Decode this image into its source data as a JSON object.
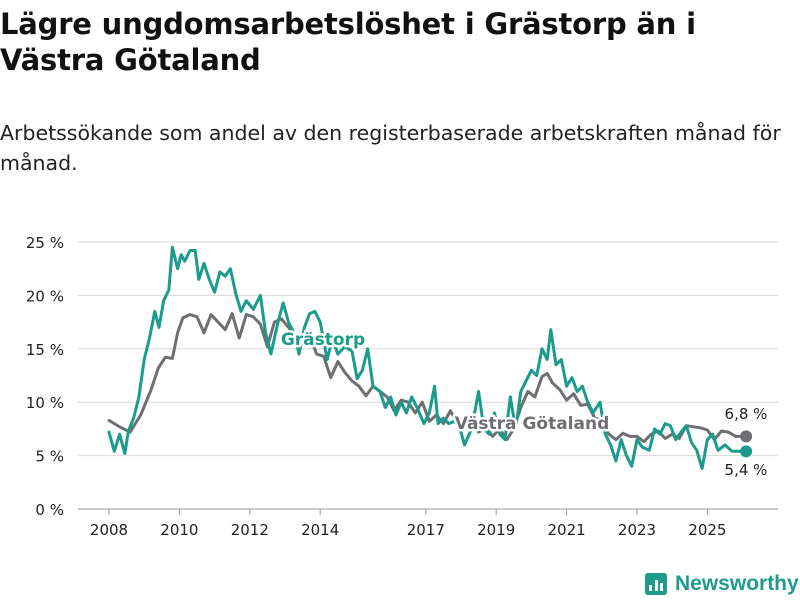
{
  "title": "Lägre ungdomsarbetslöshet i Grästorp än i Västra Götaland",
  "subtitle": "Arbetssökande som andel av den registerbaserade arbetskraften månad för månad.",
  "brand": "Newsworthy",
  "colors": {
    "grastorp": "#1a9b8c",
    "vg": "#6e6e73",
    "grid": "#d9d9d9",
    "text": "#222222"
  },
  "chart_data": {
    "type": "line",
    "title": "Lägre ungdomsarbetslöshet i Grästorp än i Västra Götaland",
    "xlabel": "",
    "ylabel": "",
    "ylim": [
      0,
      25
    ],
    "xlim": [
      2007.95,
      2026.3
    ],
    "y_ticks": [
      0,
      5,
      10,
      15,
      20,
      25
    ],
    "y_tick_labels": [
      "0 %",
      "5 %",
      "10 %",
      "15 %",
      "20 %",
      "25 %"
    ],
    "x_ticks": [
      2008,
      2010,
      2012,
      2014,
      2017,
      2019,
      2021,
      2023,
      2025
    ],
    "x_tick_labels": [
      "2008",
      "2010",
      "2012",
      "2014",
      "2017",
      "2019",
      "2021",
      "2023",
      "2025"
    ],
    "series": [
      {
        "name": "Västra Götaland",
        "label": "Västra Götaland",
        "end_label": "6,8 %",
        "points": [
          [
            2008.0,
            8.3
          ],
          [
            2008.3,
            7.7
          ],
          [
            2008.6,
            7.2
          ],
          [
            2008.9,
            8.8
          ],
          [
            2009.2,
            11.2
          ],
          [
            2009.4,
            13.2
          ],
          [
            2009.6,
            14.2
          ],
          [
            2009.8,
            14.1
          ],
          [
            2009.95,
            16.5
          ],
          [
            2010.1,
            17.9
          ],
          [
            2010.3,
            18.2
          ],
          [
            2010.5,
            18.0
          ],
          [
            2010.7,
            16.5
          ],
          [
            2010.9,
            18.2
          ],
          [
            2011.1,
            17.5
          ],
          [
            2011.3,
            16.8
          ],
          [
            2011.5,
            18.3
          ],
          [
            2011.7,
            16.0
          ],
          [
            2011.9,
            18.2
          ],
          [
            2012.1,
            18.0
          ],
          [
            2012.3,
            17.3
          ],
          [
            2012.5,
            15.2
          ],
          [
            2012.7,
            17.5
          ],
          [
            2012.9,
            17.8
          ],
          [
            2013.1,
            17.0
          ],
          [
            2013.3,
            16.2
          ],
          [
            2013.5,
            15.5
          ],
          [
            2013.7,
            16.2
          ],
          [
            2013.9,
            14.5
          ],
          [
            2014.1,
            14.3
          ],
          [
            2014.3,
            12.3
          ],
          [
            2014.5,
            13.8
          ],
          [
            2014.7,
            12.8
          ],
          [
            2014.9,
            12.0
          ],
          [
            2015.1,
            11.5
          ],
          [
            2015.3,
            10.6
          ],
          [
            2015.5,
            11.5
          ],
          [
            2015.7,
            11.0
          ],
          [
            2015.9,
            10.5
          ],
          [
            2016.1,
            9.2
          ],
          [
            2016.3,
            10.2
          ],
          [
            2016.5,
            10.0
          ],
          [
            2016.7,
            9.0
          ],
          [
            2016.9,
            10.0
          ],
          [
            2017.1,
            8.2
          ],
          [
            2017.3,
            8.8
          ],
          [
            2017.5,
            8.0
          ],
          [
            2017.7,
            9.2
          ],
          [
            2017.9,
            8.0
          ],
          [
            2018.1,
            7.5
          ],
          [
            2018.3,
            8.0
          ],
          [
            2018.5,
            7.2
          ],
          [
            2018.7,
            7.6
          ],
          [
            2018.9,
            6.8
          ],
          [
            2019.1,
            7.5
          ],
          [
            2019.3,
            6.5
          ],
          [
            2019.5,
            7.5
          ],
          [
            2019.7,
            9.5
          ],
          [
            2019.9,
            11.0
          ],
          [
            2020.1,
            10.5
          ],
          [
            2020.3,
            12.4
          ],
          [
            2020.45,
            12.7
          ],
          [
            2020.6,
            11.8
          ],
          [
            2020.8,
            11.2
          ],
          [
            2021.0,
            10.2
          ],
          [
            2021.2,
            10.8
          ],
          [
            2021.4,
            9.7
          ],
          [
            2021.6,
            9.8
          ],
          [
            2021.8,
            8.5
          ],
          [
            2022.0,
            8.3
          ],
          [
            2022.2,
            7.0
          ],
          [
            2022.4,
            6.5
          ],
          [
            2022.6,
            7.1
          ],
          [
            2022.8,
            6.8
          ],
          [
            2023.0,
            6.8
          ],
          [
            2023.2,
            6.3
          ],
          [
            2023.4,
            7.0
          ],
          [
            2023.6,
            7.3
          ],
          [
            2023.8,
            6.6
          ],
          [
            2024.0,
            7.0
          ],
          [
            2024.2,
            6.6
          ],
          [
            2024.4,
            7.8
          ],
          [
            2024.6,
            7.7
          ],
          [
            2024.8,
            7.6
          ],
          [
            2025.0,
            7.4
          ],
          [
            2025.2,
            6.5
          ],
          [
            2025.4,
            7.3
          ],
          [
            2025.6,
            7.2
          ],
          [
            2025.8,
            6.8
          ],
          [
            2026.1,
            6.8
          ]
        ]
      },
      {
        "name": "Grästorp",
        "label": "Grästorp",
        "end_label": "5,4 %",
        "points": [
          [
            2008.0,
            7.2
          ],
          [
            2008.15,
            5.4
          ],
          [
            2008.3,
            7.0
          ],
          [
            2008.45,
            5.2
          ],
          [
            2008.55,
            7.3
          ],
          [
            2008.7,
            8.5
          ],
          [
            2008.85,
            10.5
          ],
          [
            2009.0,
            14.0
          ],
          [
            2009.15,
            16.0
          ],
          [
            2009.3,
            18.5
          ],
          [
            2009.42,
            17.0
          ],
          [
            2009.55,
            19.5
          ],
          [
            2009.7,
            20.5
          ],
          [
            2009.8,
            24.5
          ],
          [
            2009.95,
            22.5
          ],
          [
            2010.05,
            23.8
          ],
          [
            2010.15,
            23.2
          ],
          [
            2010.3,
            24.2
          ],
          [
            2010.45,
            24.2
          ],
          [
            2010.55,
            21.5
          ],
          [
            2010.7,
            23.0
          ],
          [
            2010.85,
            21.5
          ],
          [
            2011.0,
            20.3
          ],
          [
            2011.15,
            22.2
          ],
          [
            2011.3,
            21.8
          ],
          [
            2011.45,
            22.5
          ],
          [
            2011.6,
            20.2
          ],
          [
            2011.75,
            18.5
          ],
          [
            2011.9,
            19.5
          ],
          [
            2012.1,
            18.7
          ],
          [
            2012.3,
            20.0
          ],
          [
            2012.45,
            16.5
          ],
          [
            2012.6,
            14.5
          ],
          [
            2012.8,
            17.5
          ],
          [
            2012.95,
            19.3
          ],
          [
            2013.1,
            17.5
          ],
          [
            2013.25,
            16.5
          ],
          [
            2013.4,
            14.5
          ],
          [
            2013.55,
            17.0
          ],
          [
            2013.7,
            18.3
          ],
          [
            2013.85,
            18.5
          ],
          [
            2014.0,
            17.5
          ],
          [
            2014.2,
            14.0
          ],
          [
            2014.35,
            16.0
          ],
          [
            2014.5,
            14.5
          ],
          [
            2014.7,
            15.2
          ],
          [
            2014.9,
            14.8
          ],
          [
            2015.05,
            12.2
          ],
          [
            2015.2,
            13.0
          ],
          [
            2015.35,
            15.0
          ],
          [
            2015.5,
            11.5
          ],
          [
            2015.7,
            11.0
          ],
          [
            2015.85,
            9.5
          ],
          [
            2016.0,
            10.5
          ],
          [
            2016.15,
            8.8
          ],
          [
            2016.3,
            10.0
          ],
          [
            2016.45,
            9.0
          ],
          [
            2016.6,
            10.5
          ],
          [
            2016.75,
            9.5
          ],
          [
            2016.95,
            8.0
          ],
          [
            2017.1,
            9.0
          ],
          [
            2017.25,
            11.5
          ],
          [
            2017.35,
            8.0
          ],
          [
            2017.5,
            8.5
          ],
          [
            2017.65,
            8.0
          ],
          [
            2017.8,
            8.2
          ],
          [
            2017.95,
            7.8
          ],
          [
            2018.1,
            6.0
          ],
          [
            2018.3,
            7.5
          ],
          [
            2018.5,
            11.0
          ],
          [
            2018.65,
            7.5
          ],
          [
            2018.8,
            7.0
          ],
          [
            2018.95,
            9.0
          ],
          [
            2019.1,
            7.0
          ],
          [
            2019.25,
            6.5
          ],
          [
            2019.4,
            10.5
          ],
          [
            2019.55,
            7.5
          ],
          [
            2019.7,
            11.0
          ],
          [
            2019.85,
            12.0
          ],
          [
            2020.0,
            13.0
          ],
          [
            2020.15,
            12.5
          ],
          [
            2020.3,
            15.0
          ],
          [
            2020.45,
            14.0
          ],
          [
            2020.55,
            16.8
          ],
          [
            2020.7,
            13.5
          ],
          [
            2020.85,
            14.0
          ],
          [
            2021.0,
            11.5
          ],
          [
            2021.15,
            12.3
          ],
          [
            2021.3,
            11.0
          ],
          [
            2021.45,
            11.5
          ],
          [
            2021.6,
            10.0
          ],
          [
            2021.75,
            9.0
          ],
          [
            2021.95,
            10.0
          ],
          [
            2022.1,
            7.0
          ],
          [
            2022.25,
            6.0
          ],
          [
            2022.4,
            4.5
          ],
          [
            2022.55,
            6.5
          ],
          [
            2022.7,
            5.0
          ],
          [
            2022.85,
            4.0
          ],
          [
            2023.0,
            6.5
          ],
          [
            2023.15,
            5.8
          ],
          [
            2023.35,
            5.5
          ],
          [
            2023.5,
            7.5
          ],
          [
            2023.65,
            7.0
          ],
          [
            2023.8,
            8.0
          ],
          [
            2023.95,
            7.8
          ],
          [
            2024.1,
            6.5
          ],
          [
            2024.25,
            7.2
          ],
          [
            2024.4,
            7.8
          ],
          [
            2024.55,
            6.2
          ],
          [
            2024.7,
            5.5
          ],
          [
            2024.85,
            3.8
          ],
          [
            2025.0,
            6.5
          ],
          [
            2025.15,
            7.0
          ],
          [
            2025.3,
            5.5
          ],
          [
            2025.5,
            6.0
          ],
          [
            2025.7,
            5.4
          ],
          [
            2026.1,
            5.4
          ]
        ]
      }
    ]
  }
}
